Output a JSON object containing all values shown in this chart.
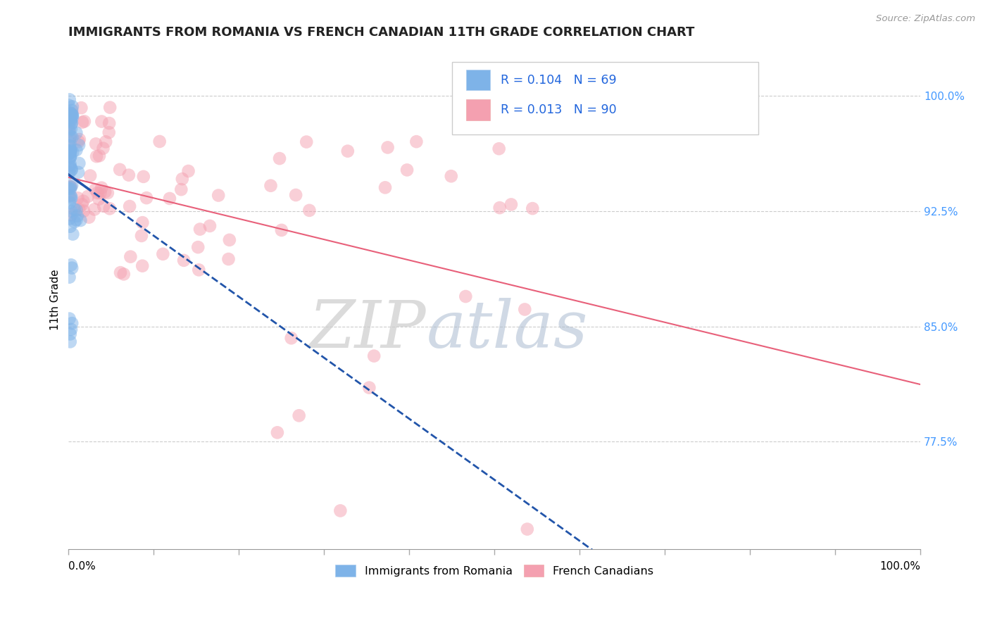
{
  "title": "IMMIGRANTS FROM ROMANIA VS FRENCH CANADIAN 11TH GRADE CORRELATION CHART",
  "source": "Source: ZipAtlas.com",
  "ylabel": "11th Grade",
  "xlim": [
    0.0,
    1.0
  ],
  "ylim": [
    0.705,
    1.03
  ],
  "legend_label1": "Immigrants from Romania",
  "legend_label2": "French Canadians",
  "R1": 0.104,
  "N1": 69,
  "R2": 0.013,
  "N2": 90,
  "color_blue": "#7EB3E8",
  "color_pink": "#F4A0B0",
  "color_blue_line": "#2255AA",
  "color_pink_line": "#E8607A",
  "color_ytick": "#4499FF",
  "color_source": "#999999",
  "watermark_zip": "ZIP",
  "watermark_atlas": "atlas",
  "ytick_vals": [
    0.775,
    0.85,
    0.925,
    1.0
  ],
  "ytick_labels": [
    "77.5%",
    "85.0%",
    "92.5%",
    "100.0%"
  ],
  "xtick_count": 11
}
